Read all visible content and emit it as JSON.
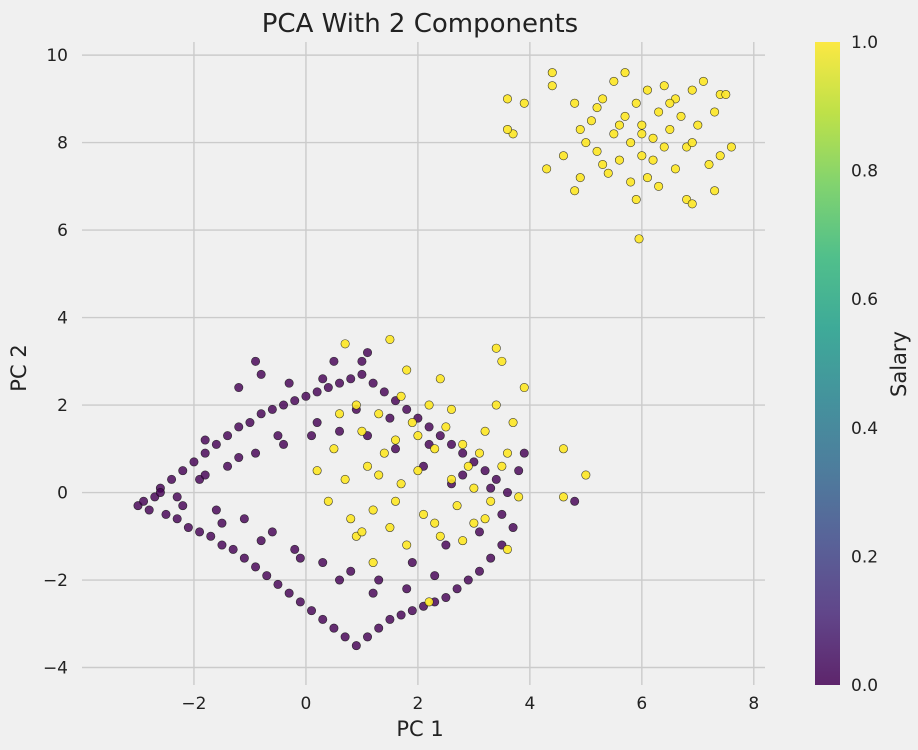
{
  "chart_data": {
    "type": "scatter",
    "title": "PCA With 2 Components",
    "xlabel": "PC 1",
    "ylabel": "PC 2",
    "xlim": [
      -4.0,
      8.2
    ],
    "ylim": [
      -4.4,
      10.3
    ],
    "xticks": [
      -2,
      0,
      2,
      4,
      6,
      8
    ],
    "xtick_labels": [
      "−2",
      "0",
      "2",
      "4",
      "6",
      "8"
    ],
    "yticks": [
      -4,
      -2,
      0,
      2,
      4,
      6,
      8,
      10
    ],
    "ytick_labels": [
      "−4",
      "−2",
      "0",
      "2",
      "4",
      "6",
      "8",
      "10"
    ],
    "grid": true,
    "colorbar": {
      "label": "Salary",
      "colormap": "viridis",
      "range": [
        0.0,
        1.0
      ],
      "ticks": [
        0.0,
        0.2,
        0.4,
        0.6,
        0.8,
        1.0
      ],
      "tick_labels": [
        "0.0",
        "0.2",
        "0.4",
        "0.6",
        "0.8",
        "1.0"
      ],
      "stops": [
        "#440154",
        "#482878",
        "#3e4989",
        "#31688e",
        "#26828e",
        "#1f9e89",
        "#35b779",
        "#6ece58",
        "#b5de2b",
        "#fde725"
      ]
    },
    "series": [
      {
        "salary": 0,
        "color": "#440154",
        "points": [
          [
            -3.0,
            -0.3
          ],
          [
            -2.9,
            -0.2
          ],
          [
            -2.8,
            -0.4
          ],
          [
            -2.7,
            -0.1
          ],
          [
            -2.6,
            0.1
          ],
          [
            -2.5,
            -0.5
          ],
          [
            -2.4,
            0.3
          ],
          [
            -2.3,
            -0.6
          ],
          [
            -2.2,
            0.5
          ],
          [
            -2.1,
            -0.8
          ],
          [
            -2.0,
            0.7
          ],
          [
            -1.9,
            -0.9
          ],
          [
            -1.8,
            0.9
          ],
          [
            -1.7,
            -1.0
          ],
          [
            -1.6,
            1.1
          ],
          [
            -1.5,
            -1.2
          ],
          [
            -1.4,
            1.3
          ],
          [
            -1.3,
            -1.3
          ],
          [
            -1.2,
            1.5
          ],
          [
            -1.1,
            -1.5
          ],
          [
            -1.0,
            1.6
          ],
          [
            -0.9,
            -1.7
          ],
          [
            -0.8,
            1.8
          ],
          [
            -0.7,
            -1.9
          ],
          [
            -0.6,
            1.9
          ],
          [
            -0.5,
            -2.1
          ],
          [
            -0.4,
            2.0
          ],
          [
            -0.3,
            -2.3
          ],
          [
            -0.2,
            2.1
          ],
          [
            -0.1,
            -2.5
          ],
          [
            0.0,
            2.2
          ],
          [
            0.1,
            -2.7
          ],
          [
            0.2,
            2.3
          ],
          [
            0.3,
            -2.9
          ],
          [
            0.4,
            2.4
          ],
          [
            0.5,
            -3.1
          ],
          [
            0.6,
            2.5
          ],
          [
            0.7,
            -3.3
          ],
          [
            0.8,
            2.6
          ],
          [
            0.9,
            -3.5
          ],
          [
            1.0,
            2.7
          ],
          [
            1.1,
            -3.3
          ],
          [
            1.2,
            2.5
          ],
          [
            1.3,
            -3.1
          ],
          [
            1.4,
            2.3
          ],
          [
            1.5,
            -2.9
          ],
          [
            1.6,
            2.1
          ],
          [
            1.7,
            -2.8
          ],
          [
            1.8,
            1.9
          ],
          [
            1.9,
            -2.7
          ],
          [
            2.0,
            1.7
          ],
          [
            2.1,
            -2.6
          ],
          [
            2.2,
            1.5
          ],
          [
            2.3,
            -2.5
          ],
          [
            2.4,
            1.3
          ],
          [
            2.5,
            -2.4
          ],
          [
            2.6,
            1.1
          ],
          [
            2.7,
            -2.2
          ],
          [
            2.8,
            0.9
          ],
          [
            2.9,
            -2.0
          ],
          [
            3.0,
            0.7
          ],
          [
            3.1,
            -1.8
          ],
          [
            3.2,
            0.5
          ],
          [
            3.3,
            -1.5
          ],
          [
            3.4,
            0.3
          ],
          [
            3.5,
            -1.2
          ],
          [
            3.6,
            0.0
          ],
          [
            3.7,
            -0.8
          ],
          [
            3.8,
            0.5
          ],
          [
            3.9,
            0.9
          ],
          [
            -1.2,
            2.4
          ],
          [
            -1.8,
            1.2
          ],
          [
            -0.9,
            3.0
          ],
          [
            -0.8,
            2.7
          ],
          [
            -0.3,
            2.5
          ],
          [
            0.5,
            3.0
          ],
          [
            1.0,
            3.0
          ],
          [
            1.1,
            3.2
          ],
          [
            0.3,
            2.6
          ],
          [
            4.8,
            -0.2
          ],
          [
            -2.3,
            -0.1
          ],
          [
            -1.9,
            0.3
          ],
          [
            -1.6,
            -0.4
          ],
          [
            -1.4,
            0.6
          ],
          [
            -1.1,
            -0.6
          ],
          [
            -0.9,
            0.9
          ],
          [
            -0.6,
            -0.9
          ],
          [
            -0.4,
            1.1
          ],
          [
            -0.2,
            -1.3
          ],
          [
            0.1,
            1.3
          ],
          [
            0.3,
            -1.6
          ],
          [
            0.6,
            1.4
          ],
          [
            0.8,
            -1.8
          ],
          [
            1.1,
            1.3
          ],
          [
            1.3,
            -2.0
          ],
          [
            1.6,
            1.0
          ],
          [
            1.8,
            -2.2
          ],
          [
            2.1,
            0.6
          ],
          [
            2.3,
            -1.9
          ],
          [
            2.6,
            0.2
          ],
          [
            -2.6,
            0.0
          ],
          [
            -2.2,
            -0.3
          ],
          [
            -1.8,
            0.4
          ],
          [
            -1.5,
            -0.7
          ],
          [
            -1.2,
            0.8
          ],
          [
            -0.8,
            -1.1
          ],
          [
            -0.5,
            1.3
          ],
          [
            -0.1,
            -1.5
          ],
          [
            0.2,
            1.6
          ],
          [
            0.6,
            -2.0
          ],
          [
            0.9,
            1.9
          ],
          [
            1.2,
            -2.3
          ],
          [
            1.5,
            1.7
          ],
          [
            1.9,
            -1.6
          ],
          [
            2.2,
            1.1
          ],
          [
            2.5,
            -1.2
          ],
          [
            2.8,
            0.4
          ],
          [
            3.1,
            -0.9
          ],
          [
            3.3,
            0.1
          ],
          [
            3.5,
            -0.5
          ]
        ]
      },
      {
        "salary": 1,
        "color": "#fde725",
        "points": [
          [
            0.2,
            0.5
          ],
          [
            0.4,
            -0.2
          ],
          [
            0.5,
            1.0
          ],
          [
            0.7,
            0.3
          ],
          [
            0.8,
            -0.6
          ],
          [
            1.0,
            1.4
          ],
          [
            1.1,
            0.6
          ],
          [
            1.2,
            -0.4
          ],
          [
            1.3,
            1.8
          ],
          [
            1.4,
            0.9
          ],
          [
            1.5,
            -0.8
          ],
          [
            1.6,
            1.2
          ],
          [
            1.7,
            0.2
          ],
          [
            1.8,
            -1.2
          ],
          [
            1.9,
            1.6
          ],
          [
            2.0,
            0.5
          ],
          [
            2.1,
            -0.5
          ],
          [
            2.2,
            2.0
          ],
          [
            2.3,
            1.0
          ],
          [
            2.4,
            -1.0
          ],
          [
            2.5,
            1.5
          ],
          [
            2.6,
            0.3
          ],
          [
            2.7,
            -0.3
          ],
          [
            2.8,
            1.1
          ],
          [
            2.9,
            0.6
          ],
          [
            3.0,
            -0.7
          ],
          [
            3.1,
            0.9
          ],
          [
            3.2,
            1.4
          ],
          [
            3.3,
            -0.2
          ],
          [
            3.4,
            2.0
          ],
          [
            3.5,
            0.6
          ],
          [
            3.6,
            -1.3
          ],
          [
            3.7,
            1.6
          ],
          [
            3.8,
            -0.1
          ],
          [
            3.9,
            2.4
          ],
          [
            4.6,
            1.0
          ],
          [
            5.0,
            0.4
          ],
          [
            4.6,
            -0.1
          ],
          [
            3.4,
            3.3
          ],
          [
            3.5,
            3.0
          ],
          [
            1.5,
            3.5
          ],
          [
            0.7,
            3.4
          ],
          [
            1.8,
            2.8
          ],
          [
            2.4,
            2.6
          ],
          [
            0.9,
            2.0
          ],
          [
            1.2,
            -1.6
          ],
          [
            2.2,
            -2.5
          ],
          [
            2.8,
            -1.1
          ],
          [
            3.2,
            -0.6
          ],
          [
            1.6,
            -0.2
          ],
          [
            0.6,
            1.8
          ],
          [
            0.9,
            -1.0
          ],
          [
            1.3,
            0.4
          ],
          [
            2.0,
            1.3
          ],
          [
            2.6,
            1.9
          ],
          [
            3.0,
            0.1
          ],
          [
            1.0,
            -0.9
          ],
          [
            2.3,
            -0.7
          ],
          [
            3.6,
            0.9
          ],
          [
            1.7,
            2.2
          ],
          [
            4.4,
            9.6
          ],
          [
            4.4,
            9.3
          ],
          [
            3.6,
            9.0
          ],
          [
            3.9,
            8.9
          ],
          [
            3.7,
            8.2
          ],
          [
            3.6,
            8.3
          ],
          [
            4.3,
            7.4
          ],
          [
            4.6,
            7.7
          ],
          [
            4.8,
            6.9
          ],
          [
            4.9,
            7.2
          ],
          [
            4.8,
            8.9
          ],
          [
            4.9,
            8.3
          ],
          [
            5.0,
            8.0
          ],
          [
            5.1,
            8.5
          ],
          [
            5.2,
            7.8
          ],
          [
            5.3,
            9.0
          ],
          [
            5.4,
            7.3
          ],
          [
            5.5,
            8.2
          ],
          [
            5.5,
            9.4
          ],
          [
            5.6,
            7.6
          ],
          [
            5.7,
            8.6
          ],
          [
            5.7,
            9.6
          ],
          [
            5.8,
            7.1
          ],
          [
            5.8,
            8.0
          ],
          [
            5.9,
            8.9
          ],
          [
            5.9,
            6.7
          ],
          [
            5.95,
            5.8
          ],
          [
            6.0,
            7.7
          ],
          [
            6.0,
            8.4
          ],
          [
            6.1,
            9.2
          ],
          [
            6.1,
            7.2
          ],
          [
            6.2,
            8.1
          ],
          [
            6.3,
            8.7
          ],
          [
            6.3,
            7.0
          ],
          [
            6.4,
            7.9
          ],
          [
            6.4,
            9.3
          ],
          [
            6.5,
            8.3
          ],
          [
            6.6,
            7.4
          ],
          [
            6.6,
            9.0
          ],
          [
            6.7,
            8.6
          ],
          [
            6.8,
            6.7
          ],
          [
            6.8,
            7.9
          ],
          [
            6.9,
            9.2
          ],
          [
            6.9,
            6.6
          ],
          [
            7.0,
            8.4
          ],
          [
            7.1,
            9.4
          ],
          [
            7.2,
            7.5
          ],
          [
            7.3,
            8.7
          ],
          [
            7.3,
            6.9
          ],
          [
            7.4,
            9.1
          ],
          [
            7.4,
            7.7
          ],
          [
            7.5,
            9.1
          ],
          [
            7.6,
            7.9
          ],
          [
            5.2,
            8.8
          ],
          [
            5.6,
            8.4
          ],
          [
            6.0,
            8.2
          ],
          [
            6.2,
            7.6
          ],
          [
            6.5,
            8.9
          ],
          [
            5.3,
            7.5
          ],
          [
            6.9,
            8.0
          ]
        ]
      }
    ]
  }
}
